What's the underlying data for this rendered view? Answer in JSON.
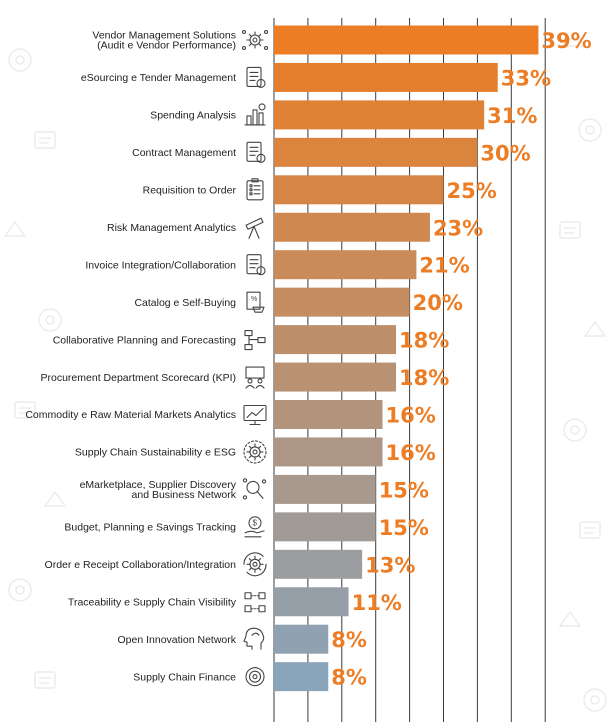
{
  "chart_data": {
    "type": "bar",
    "orientation": "horizontal",
    "title": "",
    "xlabel": "",
    "ylabel": "",
    "xlim": [
      0,
      40
    ],
    "grid": true,
    "value_suffix": "%",
    "bar_color_start": "#ec7d24",
    "bar_color_end": "#8aa4ba",
    "label_color": "#ec7d24",
    "categories": [
      "Vendor Management Solutions\n(Audit e Vendor Performance)",
      "eSourcing e Tender Management",
      "Spending Analysis",
      "Contract Management",
      "Requisition to Order",
      "Risk Management Analytics",
      "Invoice Integration/Collaboration",
      "Catalog e Self-Buying",
      "Collaborative Planning and Forecasting",
      "Procurement Department Scorecard (KPI)",
      "Commodity e Raw Material Markets Analytics",
      "Supply Chain Sustainability e ESG",
      "eMarketplace, Supplier Discovery\nand Business Network",
      "Budget, Planning e Savings Tracking",
      "Order e Receipt Collaboration/Integration",
      "Traceability e Supply Chain Visibility",
      "Open Innovation Network",
      "Supply Chain Finance"
    ],
    "values": [
      39,
      33,
      31,
      30,
      25,
      23,
      21,
      20,
      18,
      18,
      16,
      16,
      15,
      15,
      13,
      11,
      8,
      8
    ],
    "icons": [
      "gear-network-icon",
      "document-award-icon",
      "bar-chart-icon",
      "contract-gear-icon",
      "clipboard-list-icon",
      "telescope-icon",
      "invoice-icon",
      "catalog-cart-icon",
      "flowchart-icon",
      "presentation-people-icon",
      "monitor-graph-icon",
      "gear-sustainability-icon",
      "network-search-icon",
      "money-hand-icon",
      "gear-cycle-icon",
      "cubes-network-icon",
      "head-idea-icon",
      "coin-target-icon"
    ]
  }
}
